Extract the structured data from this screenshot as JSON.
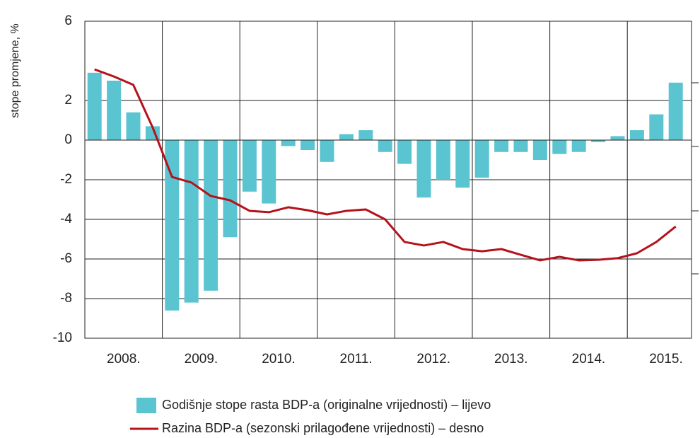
{
  "chart_data": {
    "type": "bar_line",
    "y_axis_label": "stope promjene, %",
    "years": [
      "2008.",
      "2009.",
      "2010.",
      "2011.",
      "2012.",
      "2013.",
      "2014.",
      "2015."
    ],
    "ylim": [
      -10,
      6
    ],
    "yticks": [
      6,
      2,
      0,
      -2,
      -4,
      -6,
      -8,
      -10
    ],
    "grid": true,
    "series": [
      {
        "name": "Godišnje stope rasta BDP-a (originalne vrijednosti) – lijevo",
        "color": "#5bc4d1",
        "kind": "bar",
        "values": [
          3.4,
          3.0,
          1.4,
          0.7,
          -8.6,
          -8.2,
          -7.6,
          -4.9,
          -2.6,
          -3.2,
          -0.3,
          -0.5,
          -1.1,
          0.3,
          0.5,
          -0.6,
          -1.2,
          -2.9,
          -2.0,
          -2.4,
          -1.9,
          -0.6,
          -0.6,
          -1.0,
          -0.7,
          -0.6,
          -0.1,
          0.2,
          0.5,
          1.3,
          2.9
        ]
      },
      {
        "name": "Razina BDP-a (sezonski prilagođene vrijednosti) – desno",
        "color": "#b5121b",
        "kind": "line",
        "values": [
          3.57,
          3.21,
          2.79,
          0.64,
          -1.86,
          -2.14,
          -2.82,
          -3.04,
          -3.57,
          -3.64,
          -3.39,
          -3.54,
          -3.75,
          -3.57,
          -3.5,
          -4.0,
          -5.14,
          -5.32,
          -5.14,
          -5.5,
          -5.61,
          -5.5,
          -5.79,
          -6.07,
          -5.89,
          -6.07,
          -6.04,
          -5.96,
          -5.71,
          -5.14,
          -4.36
        ]
      }
    ]
  }
}
